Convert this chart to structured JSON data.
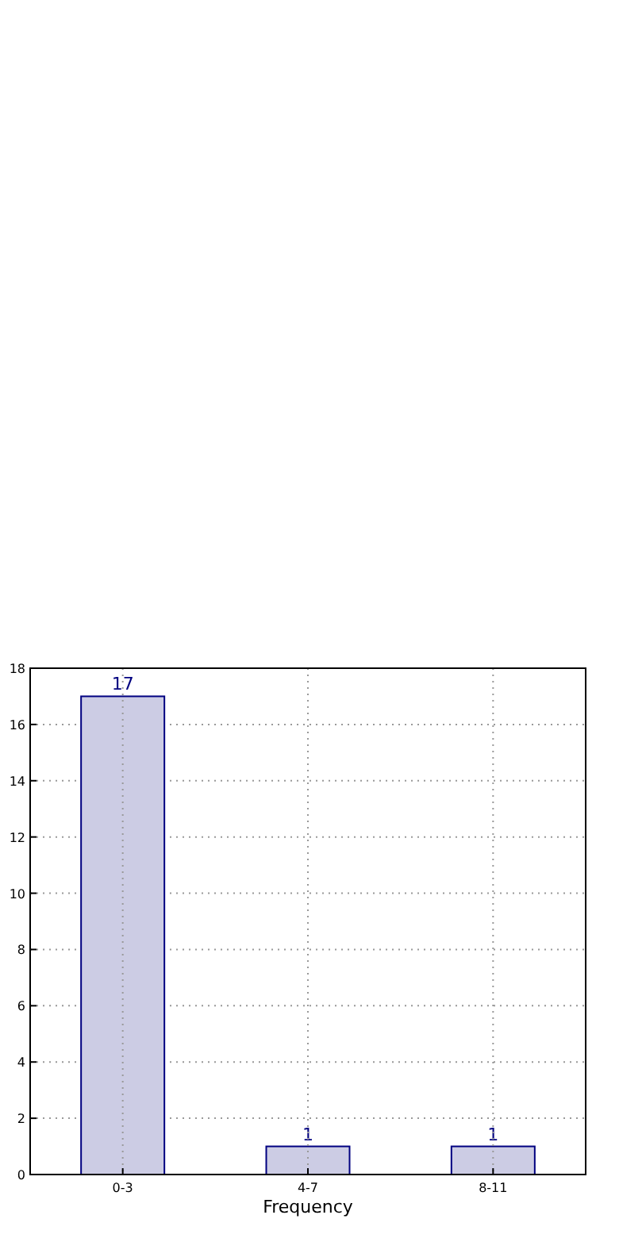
{
  "chart_data": {
    "type": "bar",
    "xlabel": "Frequency",
    "categories": [
      "0-3",
      "4-7",
      "8-11"
    ],
    "values": [
      17,
      1,
      1
    ],
    "color": "#cccce4",
    "ylim": [
      0,
      18
    ],
    "yticks": [
      0,
      2,
      4,
      6,
      8,
      10,
      12,
      14,
      16,
      18
    ],
    "grid": true,
    "data_labels": true
  }
}
